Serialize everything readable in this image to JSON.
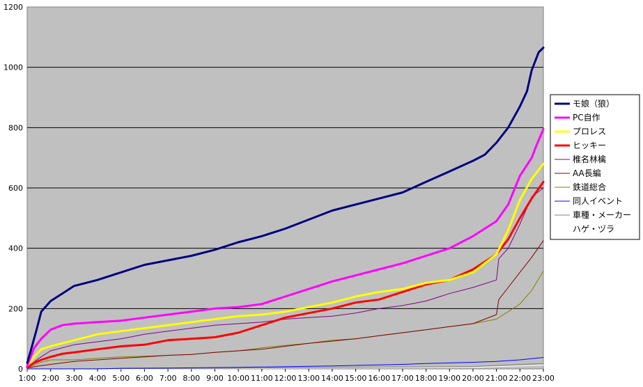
{
  "chart_data": {
    "type": "line",
    "title": "",
    "xlabel": "",
    "ylabel": "",
    "ylim": [
      0,
      1200
    ],
    "yticks": [
      0,
      200,
      400,
      600,
      800,
      1000,
      1200
    ],
    "x_start_hour": 1,
    "x_end_hour": 23,
    "xtick_labels": [
      "1:00",
      "2:00",
      "3:00",
      "4:00",
      "5:00",
      "6:00",
      "7:00",
      "8:00",
      "9:00",
      "10:00",
      "11:00",
      "12:00",
      "13:00",
      "14:00",
      "15:00",
      "16:00",
      "17:00",
      "18:00",
      "19:00",
      "20:00",
      "21:00",
      "22:00",
      "23:00"
    ],
    "grid": true,
    "legend_position": "right",
    "plot_background": "#c0c0c0",
    "series": [
      {
        "name": "モ娘（狼）",
        "color": "#000080",
        "width": 3,
        "x": [
          1,
          1.15,
          1.4,
          1.6,
          2,
          2.5,
          3,
          4,
          5,
          6,
          7,
          8,
          9,
          10,
          11,
          12,
          13,
          14,
          15,
          16,
          17,
          18,
          19,
          20,
          20.5,
          21,
          21.5,
          22,
          22.3,
          22.5,
          22.7,
          22.8,
          23
        ],
        "y": [
          20,
          60,
          130,
          190,
          225,
          250,
          275,
          295,
          320,
          345,
          360,
          375,
          395,
          420,
          440,
          465,
          495,
          525,
          545,
          565,
          585,
          620,
          655,
          690,
          710,
          750,
          800,
          870,
          920,
          990,
          1030,
          1050,
          1065
        ]
      },
      {
        "name": "PC自作",
        "color": "#ff00ff",
        "width": 3,
        "x": [
          1,
          1.3,
          1.6,
          2,
          2.5,
          3,
          4,
          5,
          6,
          7,
          8,
          9,
          10,
          11,
          12,
          13,
          14,
          15,
          16,
          17,
          18,
          19,
          20,
          21,
          21.5,
          22,
          22.5,
          22.7,
          23
        ],
        "y": [
          10,
          70,
          100,
          130,
          145,
          150,
          155,
          160,
          170,
          180,
          190,
          200,
          205,
          215,
          240,
          265,
          290,
          310,
          330,
          350,
          375,
          400,
          440,
          490,
          545,
          640,
          700,
          740,
          795
        ]
      },
      {
        "name": "プロレス",
        "color": "#ffff00",
        "width": 3,
        "x": [
          1,
          1.3,
          1.6,
          2,
          2.5,
          3,
          4,
          5,
          6,
          7,
          8,
          9,
          10,
          11,
          12,
          13,
          14,
          15,
          16,
          17,
          18,
          19,
          20,
          21,
          21.5,
          22,
          22.5,
          23
        ],
        "y": [
          10,
          40,
          65,
          75,
          85,
          95,
          115,
          125,
          135,
          145,
          155,
          165,
          175,
          180,
          190,
          205,
          220,
          240,
          255,
          265,
          285,
          295,
          320,
          380,
          460,
          560,
          630,
          680
        ]
      },
      {
        "name": "ヒッキー",
        "color": "#ff0000",
        "width": 3,
        "x": [
          1,
          1.3,
          1.6,
          2,
          2.5,
          3,
          4,
          5,
          6,
          7,
          8,
          9,
          10,
          11,
          12,
          13,
          14,
          15,
          16,
          17,
          18,
          19,
          20,
          21,
          21.5,
          22,
          22.5,
          23
        ],
        "y": [
          5,
          20,
          30,
          40,
          50,
          55,
          65,
          75,
          80,
          95,
          100,
          105,
          120,
          145,
          170,
          185,
          200,
          220,
          230,
          255,
          280,
          295,
          330,
          380,
          430,
          500,
          565,
          620
        ]
      },
      {
        "name": "椎名林檎",
        "color": "#800080",
        "width": 1,
        "x": [
          1,
          1.5,
          2,
          3,
          4,
          5,
          6,
          7,
          8,
          9,
          10,
          11,
          12,
          13,
          14,
          15,
          16,
          17,
          18,
          19,
          20,
          21,
          21.1,
          21.5,
          22,
          22.5,
          23
        ],
        "y": [
          5,
          35,
          60,
          80,
          90,
          100,
          115,
          125,
          135,
          145,
          150,
          155,
          165,
          170,
          175,
          185,
          200,
          210,
          225,
          250,
          270,
          295,
          365,
          400,
          480,
          570,
          600
        ]
      },
      {
        "name": "AA長編",
        "color": "#800000",
        "width": 1,
        "x": [
          1,
          1.5,
          2,
          3,
          4,
          5,
          6,
          7,
          8,
          9,
          10,
          11,
          12,
          13,
          14,
          15,
          16,
          17,
          18,
          19,
          20,
          21,
          21.1,
          21.5,
          22,
          22.5,
          23
        ],
        "y": [
          3,
          10,
          15,
          25,
          30,
          35,
          40,
          45,
          48,
          55,
          60,
          65,
          75,
          85,
          92,
          100,
          110,
          120,
          130,
          140,
          150,
          180,
          230,
          270,
          320,
          370,
          425
        ]
      },
      {
        "name": "鉄道総合",
        "color": "#808000",
        "width": 1,
        "x": [
          1,
          1.5,
          2,
          3,
          4,
          5,
          6,
          7,
          8,
          9,
          10,
          11,
          12,
          13,
          14,
          15,
          16,
          17,
          18,
          19,
          20,
          21,
          21.5,
          22,
          22.5,
          23
        ],
        "y": [
          2,
          20,
          30,
          30,
          35,
          40,
          42,
          45,
          48,
          55,
          60,
          70,
          78,
          85,
          95,
          100,
          110,
          120,
          130,
          140,
          150,
          165,
          190,
          215,
          260,
          325
        ]
      },
      {
        "name": "同人イベント",
        "color": "#0000ff",
        "width": 1,
        "x": [
          1,
          4,
          5,
          7,
          10,
          14,
          17,
          18,
          20,
          21,
          22,
          23
        ],
        "y": [
          0,
          0,
          2,
          3,
          5,
          10,
          15,
          18,
          22,
          25,
          30,
          38
        ]
      },
      {
        "name": "車種・メーカー",
        "color": "#808080",
        "width": 1,
        "x": [
          1,
          5,
          10,
          15,
          20,
          22,
          23
        ],
        "y": [
          0,
          1,
          2,
          5,
          8,
          15,
          18
        ]
      },
      {
        "name": "ハゲ・ヅラ",
        "color": "#ffffff",
        "width": 1,
        "x": [
          1,
          5,
          10,
          15,
          20,
          22,
          23
        ],
        "y": [
          0,
          0,
          1,
          3,
          5,
          10,
          12
        ]
      }
    ]
  }
}
